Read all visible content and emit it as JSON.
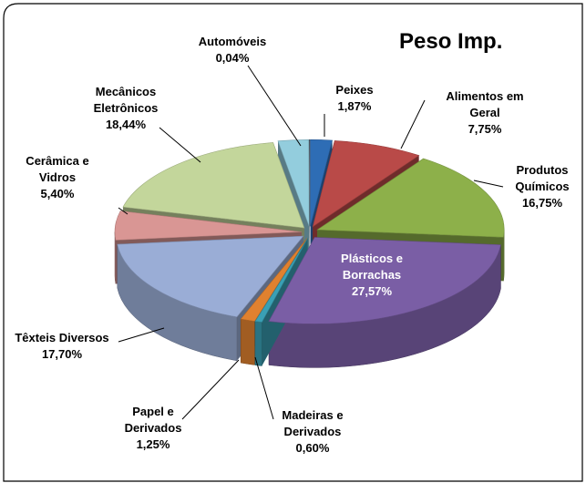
{
  "chart_data": {
    "type": "pie3d",
    "title": "Peso Imp.",
    "categories": [
      "Peixes",
      "Alimentos em\nGeral",
      "Produtos\nQuímicos",
      "Plásticos e\nBorrachas",
      "Madeiras e\nDerivados",
      "Papel e\nDerivados",
      "Têxteis Diversos",
      "Cerâmica e\nVidros",
      "Mecânicos\nEletrônicos",
      null,
      "Automóveis"
    ],
    "values": [
      1.87,
      7.75,
      16.75,
      27.57,
      0.6,
      1.25,
      17.7,
      5.4,
      18.44,
      2.63,
      0.04
    ],
    "value_labels": [
      "1,87%",
      "7,75%",
      "16,75%",
      "27,57%",
      "0,60%",
      "1,25%",
      "17,70%",
      "5,40%",
      "18,44%",
      null,
      "0,04%"
    ],
    "colors": [
      "#2e6db5",
      "#b94a48",
      "#8db04a",
      "#7a5ea5",
      "#3aa0b5",
      "#e0812f",
      "#9aadd6",
      "#d99694",
      "#c3d69b",
      "#93cddd",
      "#2f3a4a"
    ]
  }
}
